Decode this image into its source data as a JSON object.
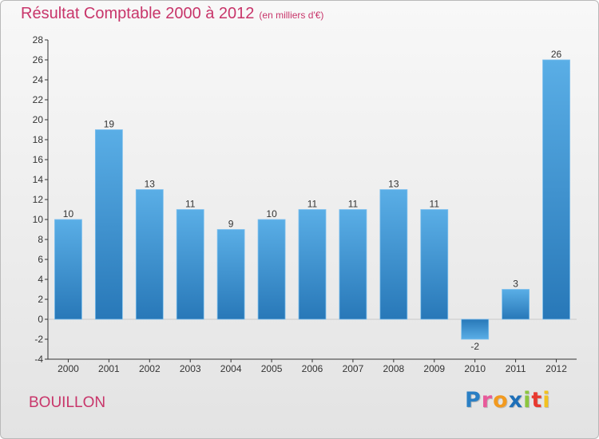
{
  "chart_data": {
    "type": "bar",
    "title": "Résultat Comptable 2000 à 2012",
    "subtitle": "(en milliers d'€)",
    "categories": [
      "2000",
      "2001",
      "2002",
      "2003",
      "2004",
      "2005",
      "2006",
      "2007",
      "2008",
      "2009",
      "2010",
      "2011",
      "2012"
    ],
    "values": [
      10,
      19,
      13,
      11,
      9,
      10,
      11,
      11,
      13,
      11,
      -2,
      3,
      26
    ],
    "ylim": [
      -4,
      28
    ],
    "yticks": [
      -4,
      -2,
      0,
      2,
      4,
      6,
      8,
      10,
      12,
      14,
      16,
      18,
      20,
      22,
      24,
      26,
      28
    ],
    "xlabel": "",
    "ylabel": "",
    "grid": false,
    "bar_color_light": "#5aaee6",
    "bar_color_dark": "#2878b8"
  },
  "commune": "BOUILLON",
  "logo": {
    "letters": [
      {
        "char": "P",
        "color": "#2a7fc4"
      },
      {
        "char": "r",
        "color": "#e85a9a"
      },
      {
        "char": "o",
        "color": "#f29a1f"
      },
      {
        "char": "x",
        "color": "#1e6fb8"
      },
      {
        "char": "i",
        "color": "#8cc63f"
      },
      {
        "char": "t",
        "color": "#e8392f"
      },
      {
        "char": "i",
        "color": "#f2c21f"
      }
    ]
  },
  "colors": {
    "title": "#c8356a",
    "axis": "#333333"
  }
}
